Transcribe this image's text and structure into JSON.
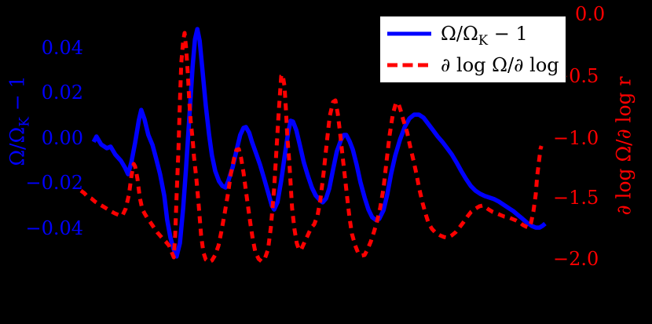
{
  "figure": {
    "background_color": "#000000"
  },
  "chart_data": {
    "type": "line",
    "title": "",
    "xlabel": "",
    "grid": false,
    "x_axis": {
      "label": "",
      "tick_labels": []
    },
    "left_axis": {
      "label_pre": "Ω/Ω",
      "label_sub": "K",
      "label_post": " − 1",
      "full_label": "Ω/Ω_K − 1",
      "color": "#0000ff",
      "tick_labels": [
        "0.04",
        "0.02",
        "0.00",
        "−0.02",
        "−0.04"
      ],
      "tick_values": [
        0.04,
        0.02,
        0.0,
        -0.02,
        -0.04
      ],
      "range": [
        -0.058,
        0.058
      ]
    },
    "right_axis": {
      "label": "∂ log Ω/∂ log r",
      "color": "#ff0000",
      "tick_labels": [
        "0.0",
        "−0.5",
        "−1.0",
        "−1.5",
        "−2.0"
      ],
      "tick_values": [
        0.0,
        -0.5,
        -1.0,
        -1.5,
        -2.0
      ],
      "range": [
        -2.1,
        0.05
      ]
    },
    "legend": {
      "position": "upper right",
      "background": "#ffffff",
      "border_color": "#000000",
      "entries": [
        {
          "label_pre": "Ω/Ω",
          "label_sub": "K",
          "label_post": " − 1",
          "full_label": "Ω/Ω_K − 1",
          "color": "#0000ff",
          "line_style": "solid"
        },
        {
          "label": "∂ log Ω/∂ log r",
          "color": "#ff0000",
          "line_style": "dashed"
        }
      ]
    },
    "x_unit": "normalized 0–1 across visible plot width",
    "series": [
      {
        "name": "Ω/Ω_K − 1",
        "axis": "left",
        "color": "#0000ff",
        "line_style": "solid",
        "points": [
          [
            0.032,
            -0.0017
          ],
          [
            0.038,
            0.0007
          ],
          [
            0.048,
            -0.0028
          ],
          [
            0.06,
            -0.0045
          ],
          [
            0.068,
            -0.0038
          ],
          [
            0.078,
            -0.0073
          ],
          [
            0.09,
            -0.0101
          ],
          [
            0.098,
            -0.0129
          ],
          [
            0.105,
            -0.016
          ],
          [
            0.112,
            -0.0108
          ],
          [
            0.12,
            -0.0021
          ],
          [
            0.128,
            0.008
          ],
          [
            0.133,
            0.0125
          ],
          [
            0.14,
            0.0083
          ],
          [
            0.148,
            0.0014
          ],
          [
            0.157,
            -0.0031
          ],
          [
            0.165,
            -0.0094
          ],
          [
            0.173,
            -0.016
          ],
          [
            0.182,
            -0.0257
          ],
          [
            0.188,
            -0.0362
          ],
          [
            0.195,
            -0.0442
          ],
          [
            0.202,
            -0.0494
          ],
          [
            0.208,
            -0.0525
          ],
          [
            0.215,
            -0.0466
          ],
          [
            0.222,
            -0.031
          ],
          [
            0.228,
            -0.0136
          ],
          [
            0.235,
            0.009
          ],
          [
            0.242,
            0.0317
          ],
          [
            0.247,
            0.0438
          ],
          [
            0.252,
            0.0483
          ],
          [
            0.257,
            0.0431
          ],
          [
            0.263,
            0.0299
          ],
          [
            0.27,
            0.0143
          ],
          [
            0.277,
            0.0014
          ],
          [
            0.283,
            -0.0077
          ],
          [
            0.29,
            -0.0146
          ],
          [
            0.298,
            -0.0191
          ],
          [
            0.305,
            -0.0212
          ],
          [
            0.312,
            -0.0219
          ],
          [
            0.318,
            -0.0188
          ],
          [
            0.327,
            -0.0129
          ],
          [
            0.335,
            -0.0056
          ],
          [
            0.343,
            0.0014
          ],
          [
            0.35,
            0.0045
          ],
          [
            0.355,
            0.0049
          ],
          [
            0.362,
            0.0024
          ],
          [
            0.368,
            -0.0017
          ],
          [
            0.377,
            -0.007
          ],
          [
            0.385,
            -0.0118
          ],
          [
            0.393,
            -0.0174
          ],
          [
            0.402,
            -0.024
          ],
          [
            0.41,
            -0.0299
          ],
          [
            0.415,
            -0.0317
          ],
          [
            0.422,
            -0.0285
          ],
          [
            0.43,
            -0.0188
          ],
          [
            0.438,
            -0.007
          ],
          [
            0.445,
            0.0028
          ],
          [
            0.45,
            0.0077
          ],
          [
            0.455,
            0.0073
          ],
          [
            0.462,
            0.0035
          ],
          [
            0.47,
            -0.0035
          ],
          [
            0.478,
            -0.0108
          ],
          [
            0.487,
            -0.017
          ],
          [
            0.495,
            -0.0219
          ],
          [
            0.503,
            -0.0254
          ],
          [
            0.512,
            -0.0275
          ],
          [
            0.518,
            -0.0285
          ],
          [
            0.525,
            -0.0268
          ],
          [
            0.532,
            -0.0223
          ],
          [
            0.54,
            -0.0139
          ],
          [
            0.548,
            -0.0059
          ],
          [
            0.557,
            -0.0007
          ],
          [
            0.563,
            0.0014
          ],
          [
            0.568,
            0.0014
          ],
          [
            0.575,
            -0.0014
          ],
          [
            0.582,
            -0.0052
          ],
          [
            0.59,
            -0.0118
          ],
          [
            0.598,
            -0.0195
          ],
          [
            0.607,
            -0.0264
          ],
          [
            0.615,
            -0.0317
          ],
          [
            0.623,
            -0.0351
          ],
          [
            0.632,
            -0.0365
          ],
          [
            0.638,
            -0.0358
          ],
          [
            0.647,
            -0.032
          ],
          [
            0.655,
            -0.025
          ],
          [
            0.663,
            -0.016
          ],
          [
            0.672,
            -0.0077
          ],
          [
            0.682,
            -0.0007
          ],
          [
            0.692,
            0.0049
          ],
          [
            0.702,
            0.0087
          ],
          [
            0.712,
            0.0104
          ],
          [
            0.722,
            0.0104
          ],
          [
            0.732,
            0.009
          ],
          [
            0.742,
            0.0063
          ],
          [
            0.752,
            0.0035
          ],
          [
            0.762,
            0.0007
          ],
          [
            0.772,
            -0.0017
          ],
          [
            0.782,
            -0.0045
          ],
          [
            0.792,
            -0.0073
          ],
          [
            0.802,
            -0.0108
          ],
          [
            0.812,
            -0.0146
          ],
          [
            0.822,
            -0.0181
          ],
          [
            0.832,
            -0.0212
          ],
          [
            0.842,
            -0.0233
          ],
          [
            0.852,
            -0.0247
          ],
          [
            0.862,
            -0.0257
          ],
          [
            0.872,
            -0.0264
          ],
          [
            0.882,
            -0.0271
          ],
          [
            0.892,
            -0.0282
          ],
          [
            0.902,
            -0.0296
          ],
          [
            0.912,
            -0.031
          ],
          [
            0.922,
            -0.0323
          ],
          [
            0.932,
            -0.0341
          ],
          [
            0.942,
            -0.0358
          ],
          [
            0.952,
            -0.0376
          ],
          [
            0.962,
            -0.039
          ],
          [
            0.97,
            -0.0397
          ],
          [
            0.978,
            -0.0397
          ],
          [
            0.985,
            -0.0388
          ],
          [
            0.99,
            -0.0379
          ]
        ]
      },
      {
        "name": "∂ log Ω/∂ log r",
        "axis": "right",
        "color": "#ff0000",
        "line_style": "dashed",
        "points": [
          [
            0.005,
            -1.442
          ],
          [
            0.012,
            -1.462
          ],
          [
            0.018,
            -1.487
          ],
          [
            0.027,
            -1.506
          ],
          [
            0.035,
            -1.532
          ],
          [
            0.043,
            -1.551
          ],
          [
            0.052,
            -1.571
          ],
          [
            0.06,
            -1.59
          ],
          [
            0.068,
            -1.609
          ],
          [
            0.077,
            -1.628
          ],
          [
            0.085,
            -1.641
          ],
          [
            0.093,
            -1.647
          ],
          [
            0.1,
            -1.59
          ],
          [
            0.107,
            -1.474
          ],
          [
            0.112,
            -1.327
          ],
          [
            0.117,
            -1.224
          ],
          [
            0.12,
            -1.244
          ],
          [
            0.125,
            -1.346
          ],
          [
            0.13,
            -1.5
          ],
          [
            0.135,
            -1.59
          ],
          [
            0.14,
            -1.628
          ],
          [
            0.145,
            -1.66
          ],
          [
            0.152,
            -1.699
          ],
          [
            0.16,
            -1.744
          ],
          [
            0.168,
            -1.788
          ],
          [
            0.177,
            -1.827
          ],
          [
            0.185,
            -1.859
          ],
          [
            0.192,
            -1.891
          ],
          [
            0.198,
            -1.949
          ],
          [
            0.202,
            -1.987
          ],
          [
            0.205,
            -1.808
          ],
          [
            0.208,
            -1.487
          ],
          [
            0.212,
            -1.103
          ],
          [
            0.215,
            -0.718
          ],
          [
            0.218,
            -0.397
          ],
          [
            0.222,
            -0.218
          ],
          [
            0.225,
            -0.154
          ],
          [
            0.228,
            -0.269
          ],
          [
            0.232,
            -0.494
          ],
          [
            0.235,
            -0.718
          ],
          [
            0.238,
            -0.878
          ],
          [
            0.242,
            -1.019
          ],
          [
            0.245,
            -1.167
          ],
          [
            0.25,
            -1.346
          ],
          [
            0.255,
            -1.564
          ],
          [
            0.26,
            -1.808
          ],
          [
            0.265,
            -1.949
          ],
          [
            0.27,
            -2.006
          ],
          [
            0.277,
            -2.026
          ],
          [
            0.283,
            -2.013
          ],
          [
            0.29,
            -1.968
          ],
          [
            0.297,
            -1.891
          ],
          [
            0.303,
            -1.776
          ],
          [
            0.31,
            -1.628
          ],
          [
            0.317,
            -1.468
          ],
          [
            0.323,
            -1.308
          ],
          [
            0.33,
            -1.179
          ],
          [
            0.335,
            -1.109
          ],
          [
            0.34,
            -1.103
          ],
          [
            0.345,
            -1.179
          ],
          [
            0.35,
            -1.295
          ],
          [
            0.355,
            -1.442
          ],
          [
            0.36,
            -1.583
          ],
          [
            0.365,
            -1.724
          ],
          [
            0.37,
            -1.846
          ],
          [
            0.375,
            -1.942
          ],
          [
            0.382,
            -2.0
          ],
          [
            0.388,
            -2.019
          ],
          [
            0.395,
            -2.0
          ],
          [
            0.402,
            -1.923
          ],
          [
            0.408,
            -1.744
          ],
          [
            0.415,
            -1.423
          ],
          [
            0.42,
            -1.103
          ],
          [
            0.425,
            -0.782
          ],
          [
            0.43,
            -0.506
          ],
          [
            0.433,
            -0.494
          ],
          [
            0.437,
            -0.59
          ],
          [
            0.44,
            -0.782
          ],
          [
            0.443,
            -1.006
          ],
          [
            0.447,
            -1.199
          ],
          [
            0.45,
            -1.391
          ],
          [
            0.453,
            -1.583
          ],
          [
            0.458,
            -1.756
          ],
          [
            0.463,
            -1.872
          ],
          [
            0.468,
            -1.929
          ],
          [
            0.473,
            -1.917
          ],
          [
            0.48,
            -1.859
          ],
          [
            0.487,
            -1.801
          ],
          [
            0.493,
            -1.75
          ],
          [
            0.5,
            -1.718
          ],
          [
            0.507,
            -1.647
          ],
          [
            0.513,
            -1.519
          ],
          [
            0.52,
            -1.295
          ],
          [
            0.527,
            -1.038
          ],
          [
            0.533,
            -0.833
          ],
          [
            0.54,
            -0.718
          ],
          [
            0.545,
            -0.705
          ],
          [
            0.55,
            -0.814
          ],
          [
            0.555,
            -0.974
          ],
          [
            0.56,
            -1.154
          ],
          [
            0.565,
            -1.327
          ],
          [
            0.57,
            -1.5
          ],
          [
            0.575,
            -1.667
          ],
          [
            0.58,
            -1.795
          ],
          [
            0.587,
            -1.891
          ],
          [
            0.593,
            -1.949
          ],
          [
            0.6,
            -1.974
          ],
          [
            0.607,
            -1.968
          ],
          [
            0.613,
            -1.923
          ],
          [
            0.62,
            -1.859
          ],
          [
            0.627,
            -1.776
          ],
          [
            0.633,
            -1.699
          ],
          [
            0.64,
            -1.583
          ],
          [
            0.647,
            -1.423
          ],
          [
            0.653,
            -1.218
          ],
          [
            0.66,
            -0.987
          ],
          [
            0.667,
            -0.814
          ],
          [
            0.673,
            -0.731
          ],
          [
            0.678,
            -0.724
          ],
          [
            0.683,
            -0.782
          ],
          [
            0.69,
            -0.878
          ],
          [
            0.697,
            -0.962
          ],
          [
            0.703,
            -1.071
          ],
          [
            0.71,
            -1.186
          ],
          [
            0.717,
            -1.308
          ],
          [
            0.723,
            -1.429
          ],
          [
            0.73,
            -1.545
          ],
          [
            0.737,
            -1.641
          ],
          [
            0.743,
            -1.712
          ],
          [
            0.75,
            -1.756
          ],
          [
            0.758,
            -1.788
          ],
          [
            0.767,
            -1.808
          ],
          [
            0.775,
            -1.821
          ],
          [
            0.783,
            -1.827
          ],
          [
            0.792,
            -1.808
          ],
          [
            0.8,
            -1.782
          ],
          [
            0.808,
            -1.744
          ],
          [
            0.817,
            -1.699
          ],
          [
            0.825,
            -1.654
          ],
          [
            0.833,
            -1.615
          ],
          [
            0.842,
            -1.59
          ],
          [
            0.85,
            -1.571
          ],
          [
            0.857,
            -1.564
          ],
          [
            0.863,
            -1.577
          ],
          [
            0.87,
            -1.596
          ],
          [
            0.878,
            -1.615
          ],
          [
            0.887,
            -1.628
          ],
          [
            0.895,
            -1.641
          ],
          [
            0.903,
            -1.654
          ],
          [
            0.912,
            -1.66
          ],
          [
            0.92,
            -1.673
          ],
          [
            0.928,
            -1.686
          ],
          [
            0.937,
            -1.705
          ],
          [
            0.943,
            -1.724
          ],
          [
            0.95,
            -1.737
          ],
          [
            0.955,
            -1.744
          ],
          [
            0.96,
            -1.705
          ],
          [
            0.965,
            -1.615
          ],
          [
            0.97,
            -1.474
          ],
          [
            0.973,
            -1.327
          ],
          [
            0.977,
            -1.199
          ],
          [
            0.98,
            -1.103
          ],
          [
            0.982,
            -1.077
          ]
        ]
      }
    ]
  }
}
